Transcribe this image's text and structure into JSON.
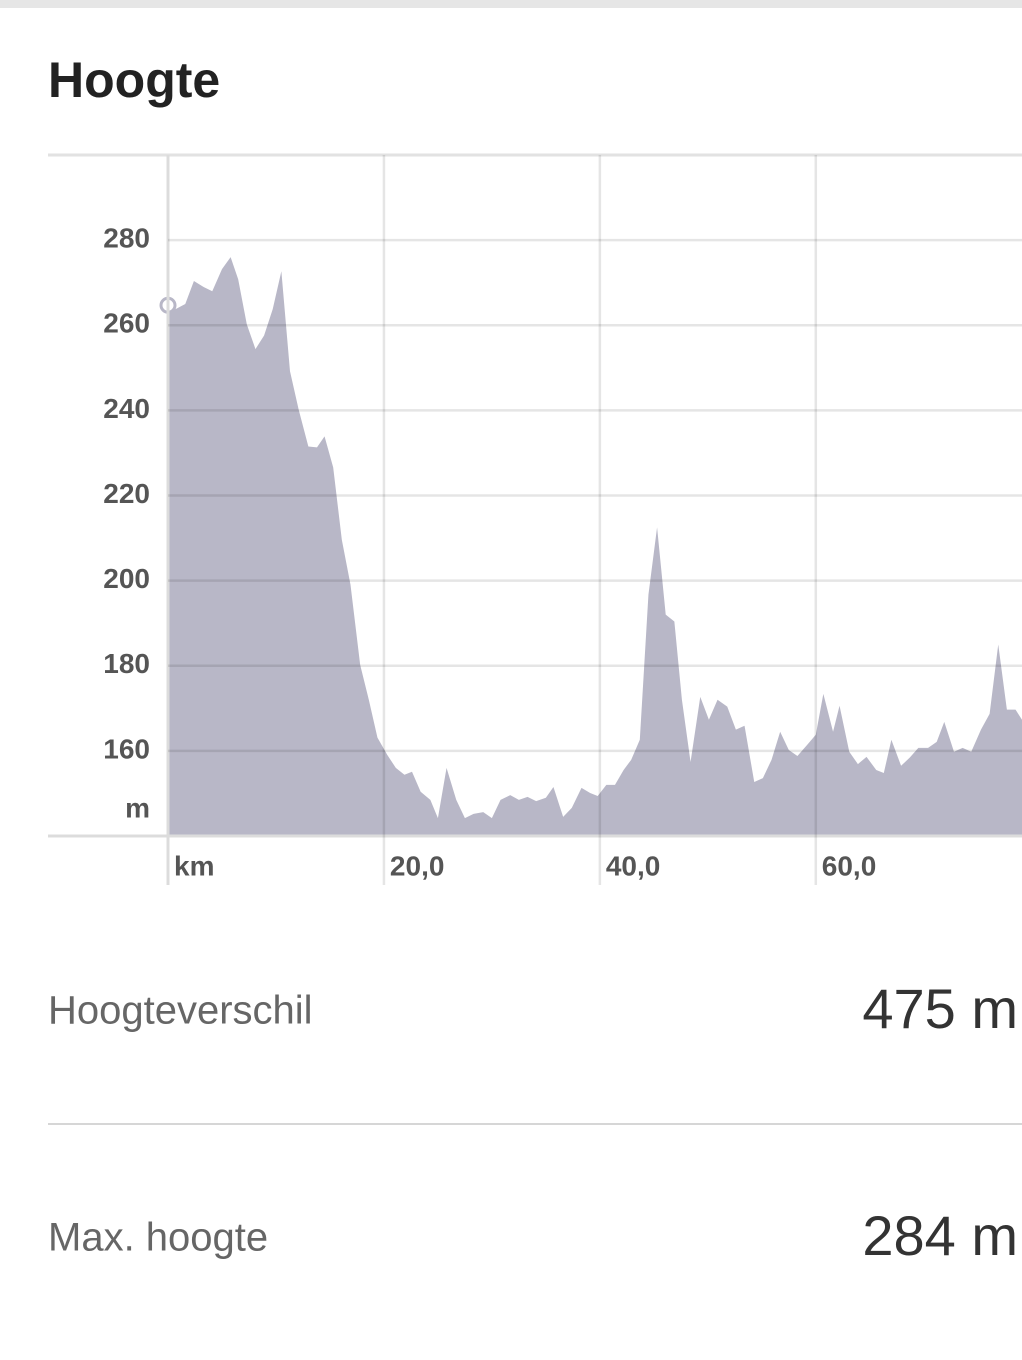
{
  "header": {
    "title": "Hoogte"
  },
  "chart_data": {
    "type": "area",
    "color": "#b8b7c7",
    "x_unit": "km",
    "y_unit": "m",
    "x": [
      0,
      0.7,
      1.6,
      2.4,
      3.3,
      4.1,
      5.0,
      5.8,
      6.5,
      7.3,
      8.1,
      8.9,
      9.7,
      10.5,
      11.3,
      12.1,
      13.0,
      13.8,
      14.5,
      15.3,
      16.1,
      16.9,
      17.8,
      18.6,
      19.4,
      20.3,
      21.1,
      21.9,
      22.6,
      23.4,
      24.3,
      25.0,
      25.8,
      26.7,
      27.5,
      28.3,
      29.2,
      30.0,
      30.8,
      31.7,
      32.5,
      33.3,
      34.1,
      35.0,
      35.7,
      36.6,
      37.4,
      38.3,
      39.1,
      39.8,
      40.6,
      41.4,
      42.2,
      42.9,
      43.7,
      44.5,
      45.3,
      46.1,
      46.9,
      47.6,
      48.4,
      49.3,
      50.1,
      50.9,
      51.8,
      52.6,
      53.4,
      54.3,
      55.1,
      55.9,
      56.7,
      57.5,
      58.3,
      59.2,
      60.0,
      60.7,
      61.6,
      62.2,
      63.1,
      63.9,
      64.7,
      65.6,
      66.3,
      67.0,
      67.9,
      68.7,
      69.5,
      70.4,
      71.2,
      71.9,
      72.8,
      73.6,
      74.4,
      75.3,
      76.1,
      76.9,
      77.7,
      78.5,
      79.1
    ],
    "values": [
      264.7,
      263.8,
      265,
      270.4,
      269,
      268,
      273.2,
      276,
      270.8,
      260.2,
      254.4,
      257.6,
      263.8,
      272.7,
      249.2,
      240.2,
      231.5,
      231.3,
      233.9,
      226.6,
      209.6,
      199.1,
      180.2,
      172,
      163.1,
      159.1,
      156,
      154.4,
      155.1,
      150.4,
      148.5,
      144.2,
      156,
      148.5,
      144.2,
      145.2,
      145.6,
      144.2,
      148.5,
      149.6,
      148.5,
      149.2,
      148.2,
      149,
      151.5,
      144.5,
      146.6,
      151.3,
      150.1,
      149.4,
      152,
      152,
      155.5,
      157.9,
      162.6,
      196.7,
      212.5,
      192,
      190.4,
      172,
      157.4,
      172.7,
      167.3,
      172,
      170.4,
      165,
      165.9,
      152.7,
      153.6,
      157.9,
      164.5,
      160.2,
      158.8,
      161.4,
      163.8,
      173.4,
      164.5,
      170.6,
      159.8,
      156.9,
      158.6,
      155.5,
      154.8,
      162.6,
      156.5,
      158.4,
      160.7,
      160.7,
      162.1,
      166.8,
      159.8,
      160.7,
      159.8,
      165,
      168.7,
      185,
      169.7,
      169.7,
      167.3
    ],
    "xlim": [
      0,
      79.1
    ],
    "ylim": [
      140,
      300
    ],
    "xticks": [
      {
        "value": 20,
        "label": "20,0"
      },
      {
        "value": 40,
        "label": "40,0"
      },
      {
        "value": 60,
        "label": "60,0"
      }
    ],
    "yticks": [
      160,
      180,
      200,
      220,
      240,
      260,
      280
    ],
    "grid": true
  },
  "stats": [
    {
      "label": "Hoogteverschil",
      "value": "475 m"
    },
    {
      "label": "Max. hoogte",
      "value": "284 m"
    }
  ]
}
